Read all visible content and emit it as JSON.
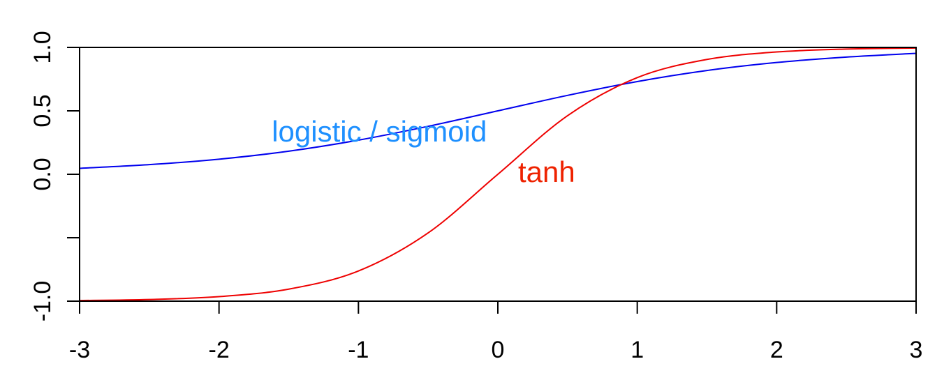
{
  "chart_data": {
    "type": "line",
    "title": "",
    "xlabel": "",
    "ylabel": "",
    "xlim": [
      -3,
      3
    ],
    "ylim": [
      -1,
      1
    ],
    "grid": false,
    "x_ticks": [
      -3,
      -2,
      -1,
      0,
      1,
      2,
      3
    ],
    "x_tick_labels": [
      "-3",
      "-2",
      "-1",
      "0",
      "1",
      "2",
      "3"
    ],
    "y_ticks": [
      -1,
      -0.5,
      0,
      0.5,
      1
    ],
    "y_tick_labels": [
      "-1.0",
      "",
      "0.0",
      "0.5",
      "1.0"
    ],
    "series": [
      {
        "key": "logistic",
        "color": "#0000ee",
        "x": [
          -3,
          -2.5,
          -2,
          -1.5,
          -1,
          -0.5,
          0,
          0.5,
          1,
          1.5,
          2,
          2.5,
          3
        ],
        "y": [
          0.047,
          0.076,
          0.119,
          0.182,
          0.269,
          0.378,
          0.5,
          0.622,
          0.731,
          0.818,
          0.881,
          0.924,
          0.953
        ]
      },
      {
        "key": "tanh",
        "color": "#ee0000",
        "x": [
          -3,
          -2.5,
          -2,
          -1.5,
          -1,
          -0.5,
          0,
          0.5,
          1,
          1.5,
          2,
          2.5,
          3
        ],
        "y": [
          -0.995,
          -0.987,
          -0.964,
          -0.905,
          -0.762,
          -0.462,
          0,
          0.462,
          0.762,
          0.905,
          0.964,
          0.987,
          0.995
        ]
      }
    ],
    "annotations": [
      {
        "text": "logistic / sigmoid",
        "x": -0.85,
        "y": 0.32,
        "color": "#1e90ff"
      },
      {
        "text": "tanh",
        "x": 0.35,
        "y": 0.0,
        "color": "#ee2200"
      }
    ]
  }
}
